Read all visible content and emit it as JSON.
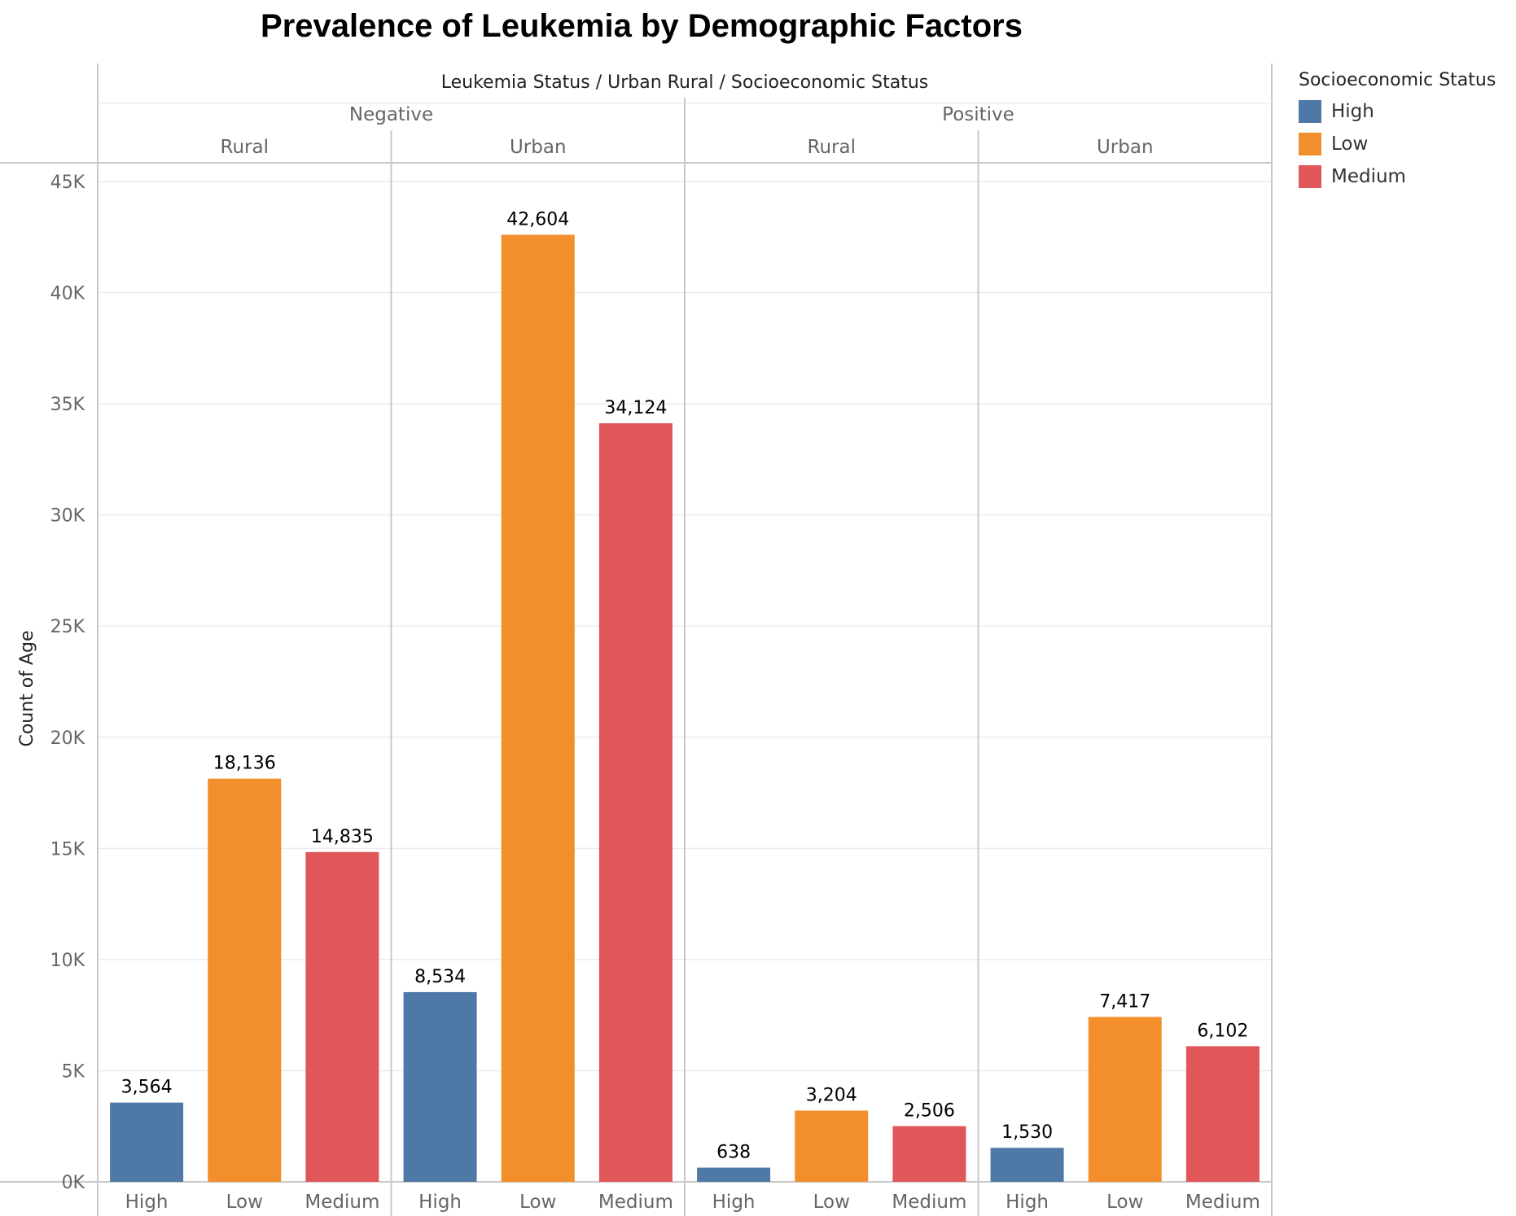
{
  "chart_data": {
    "type": "bar",
    "title": "Prevalence of Leukemia by Demographic Factors",
    "header_title": "Leukemia Status  /  Urban Rural  /  Socioeconomic Status",
    "ylabel": "Count of Age",
    "ylim": [
      0,
      45000
    ],
    "yticks": [
      0,
      5000,
      10000,
      15000,
      20000,
      25000,
      30000,
      35000,
      40000,
      45000
    ],
    "ytick_labels": [
      "0K",
      "5K",
      "10K",
      "15K",
      "20K",
      "25K",
      "30K",
      "35K",
      "40K",
      "45K"
    ],
    "grid": true,
    "legend": {
      "title": "Socioeconomic Status",
      "placement": "right",
      "items": [
        {
          "label": "High",
          "color": "#4e79a7"
        },
        {
          "label": "Low",
          "color": "#f28e2b"
        },
        {
          "label": "Medium",
          "color": "#e15759"
        }
      ]
    },
    "groups": [
      {
        "status": "Negative",
        "areas": [
          {
            "area": "Rural",
            "bars": [
              {
                "category": "High",
                "value": 3564,
                "label": "3,564"
              },
              {
                "category": "Low",
                "value": 18136,
                "label": "18,136"
              },
              {
                "category": "Medium",
                "value": 14835,
                "label": "14,835"
              }
            ]
          },
          {
            "area": "Urban",
            "bars": [
              {
                "category": "High",
                "value": 8534,
                "label": "8,534"
              },
              {
                "category": "Low",
                "value": 42604,
                "label": "42,604"
              },
              {
                "category": "Medium",
                "value": 34124,
                "label": "34,124"
              }
            ]
          }
        ]
      },
      {
        "status": "Positive",
        "areas": [
          {
            "area": "Rural",
            "bars": [
              {
                "category": "High",
                "value": 638,
                "label": "638"
              },
              {
                "category": "Low",
                "value": 3204,
                "label": "3,204"
              },
              {
                "category": "Medium",
                "value": 2506,
                "label": "2,506"
              }
            ]
          },
          {
            "area": "Urban",
            "bars": [
              {
                "category": "High",
                "value": 1530,
                "label": "1,530"
              },
              {
                "category": "Low",
                "value": 7417,
                "label": "7,417"
              },
              {
                "category": "Medium",
                "value": 6102,
                "label": "6,102"
              }
            ]
          }
        ]
      }
    ]
  }
}
